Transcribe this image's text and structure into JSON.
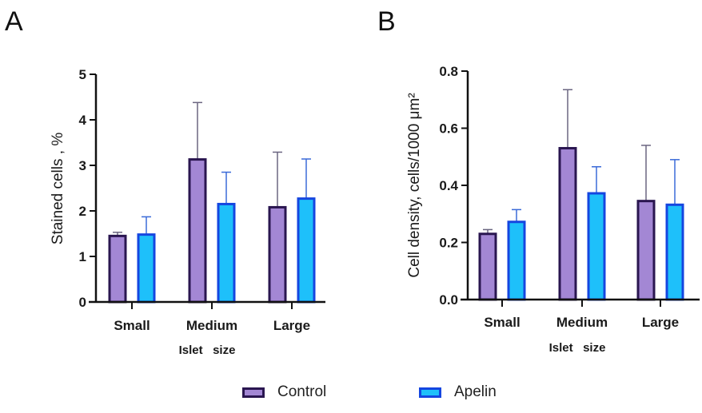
{
  "panels": {
    "a_letter": "A",
    "b_letter": "B"
  },
  "legend": [
    {
      "label": "Control",
      "fill": "#a387d4",
      "stroke": "#2a1650"
    },
    {
      "label": "Apelin",
      "fill": "#1ec0fa",
      "stroke": "#1546e0"
    }
  ],
  "chart_data": [
    {
      "type": "bar",
      "panel": "A",
      "title": "",
      "xlabel": "Islet   size",
      "ylabel": "Stained cells , %",
      "categories": [
        "Small",
        "Medium",
        "Large"
      ],
      "ylim": [
        0,
        5
      ],
      "yticks": [
        0,
        1,
        2,
        3,
        4,
        5
      ],
      "ytick_labels": [
        "0",
        "1",
        "2",
        "3",
        "4",
        "5"
      ],
      "grid": false,
      "legend_position": "bottom-center",
      "series": [
        {
          "name": "Control",
          "values": [
            1.45,
            3.13,
            2.08
          ],
          "error_upper": [
            1.53,
            4.38,
            3.29
          ]
        },
        {
          "name": "Apelin",
          "values": [
            1.48,
            2.15,
            2.27
          ],
          "error_upper": [
            1.87,
            2.85,
            3.14
          ]
        }
      ]
    },
    {
      "type": "bar",
      "panel": "B",
      "title": "",
      "xlabel": "Islet   size",
      "ylabel": "Cell density, cells/1000 μm²",
      "categories": [
        "Small",
        "Medium",
        "Large"
      ],
      "ylim": [
        0,
        0.8
      ],
      "yticks": [
        0,
        0.2,
        0.4,
        0.6,
        0.8
      ],
      "ytick_labels": [
        "0.0",
        "0.2",
        "0.4",
        "0.6",
        "0.8"
      ],
      "grid": false,
      "legend_position": "bottom-center",
      "series": [
        {
          "name": "Control",
          "values": [
            0.23,
            0.53,
            0.345
          ],
          "error_upper": [
            0.245,
            0.735,
            0.54
          ]
        },
        {
          "name": "Apelin",
          "values": [
            0.272,
            0.372,
            0.332
          ],
          "error_upper": [
            0.315,
            0.465,
            0.49
          ]
        }
      ]
    }
  ]
}
